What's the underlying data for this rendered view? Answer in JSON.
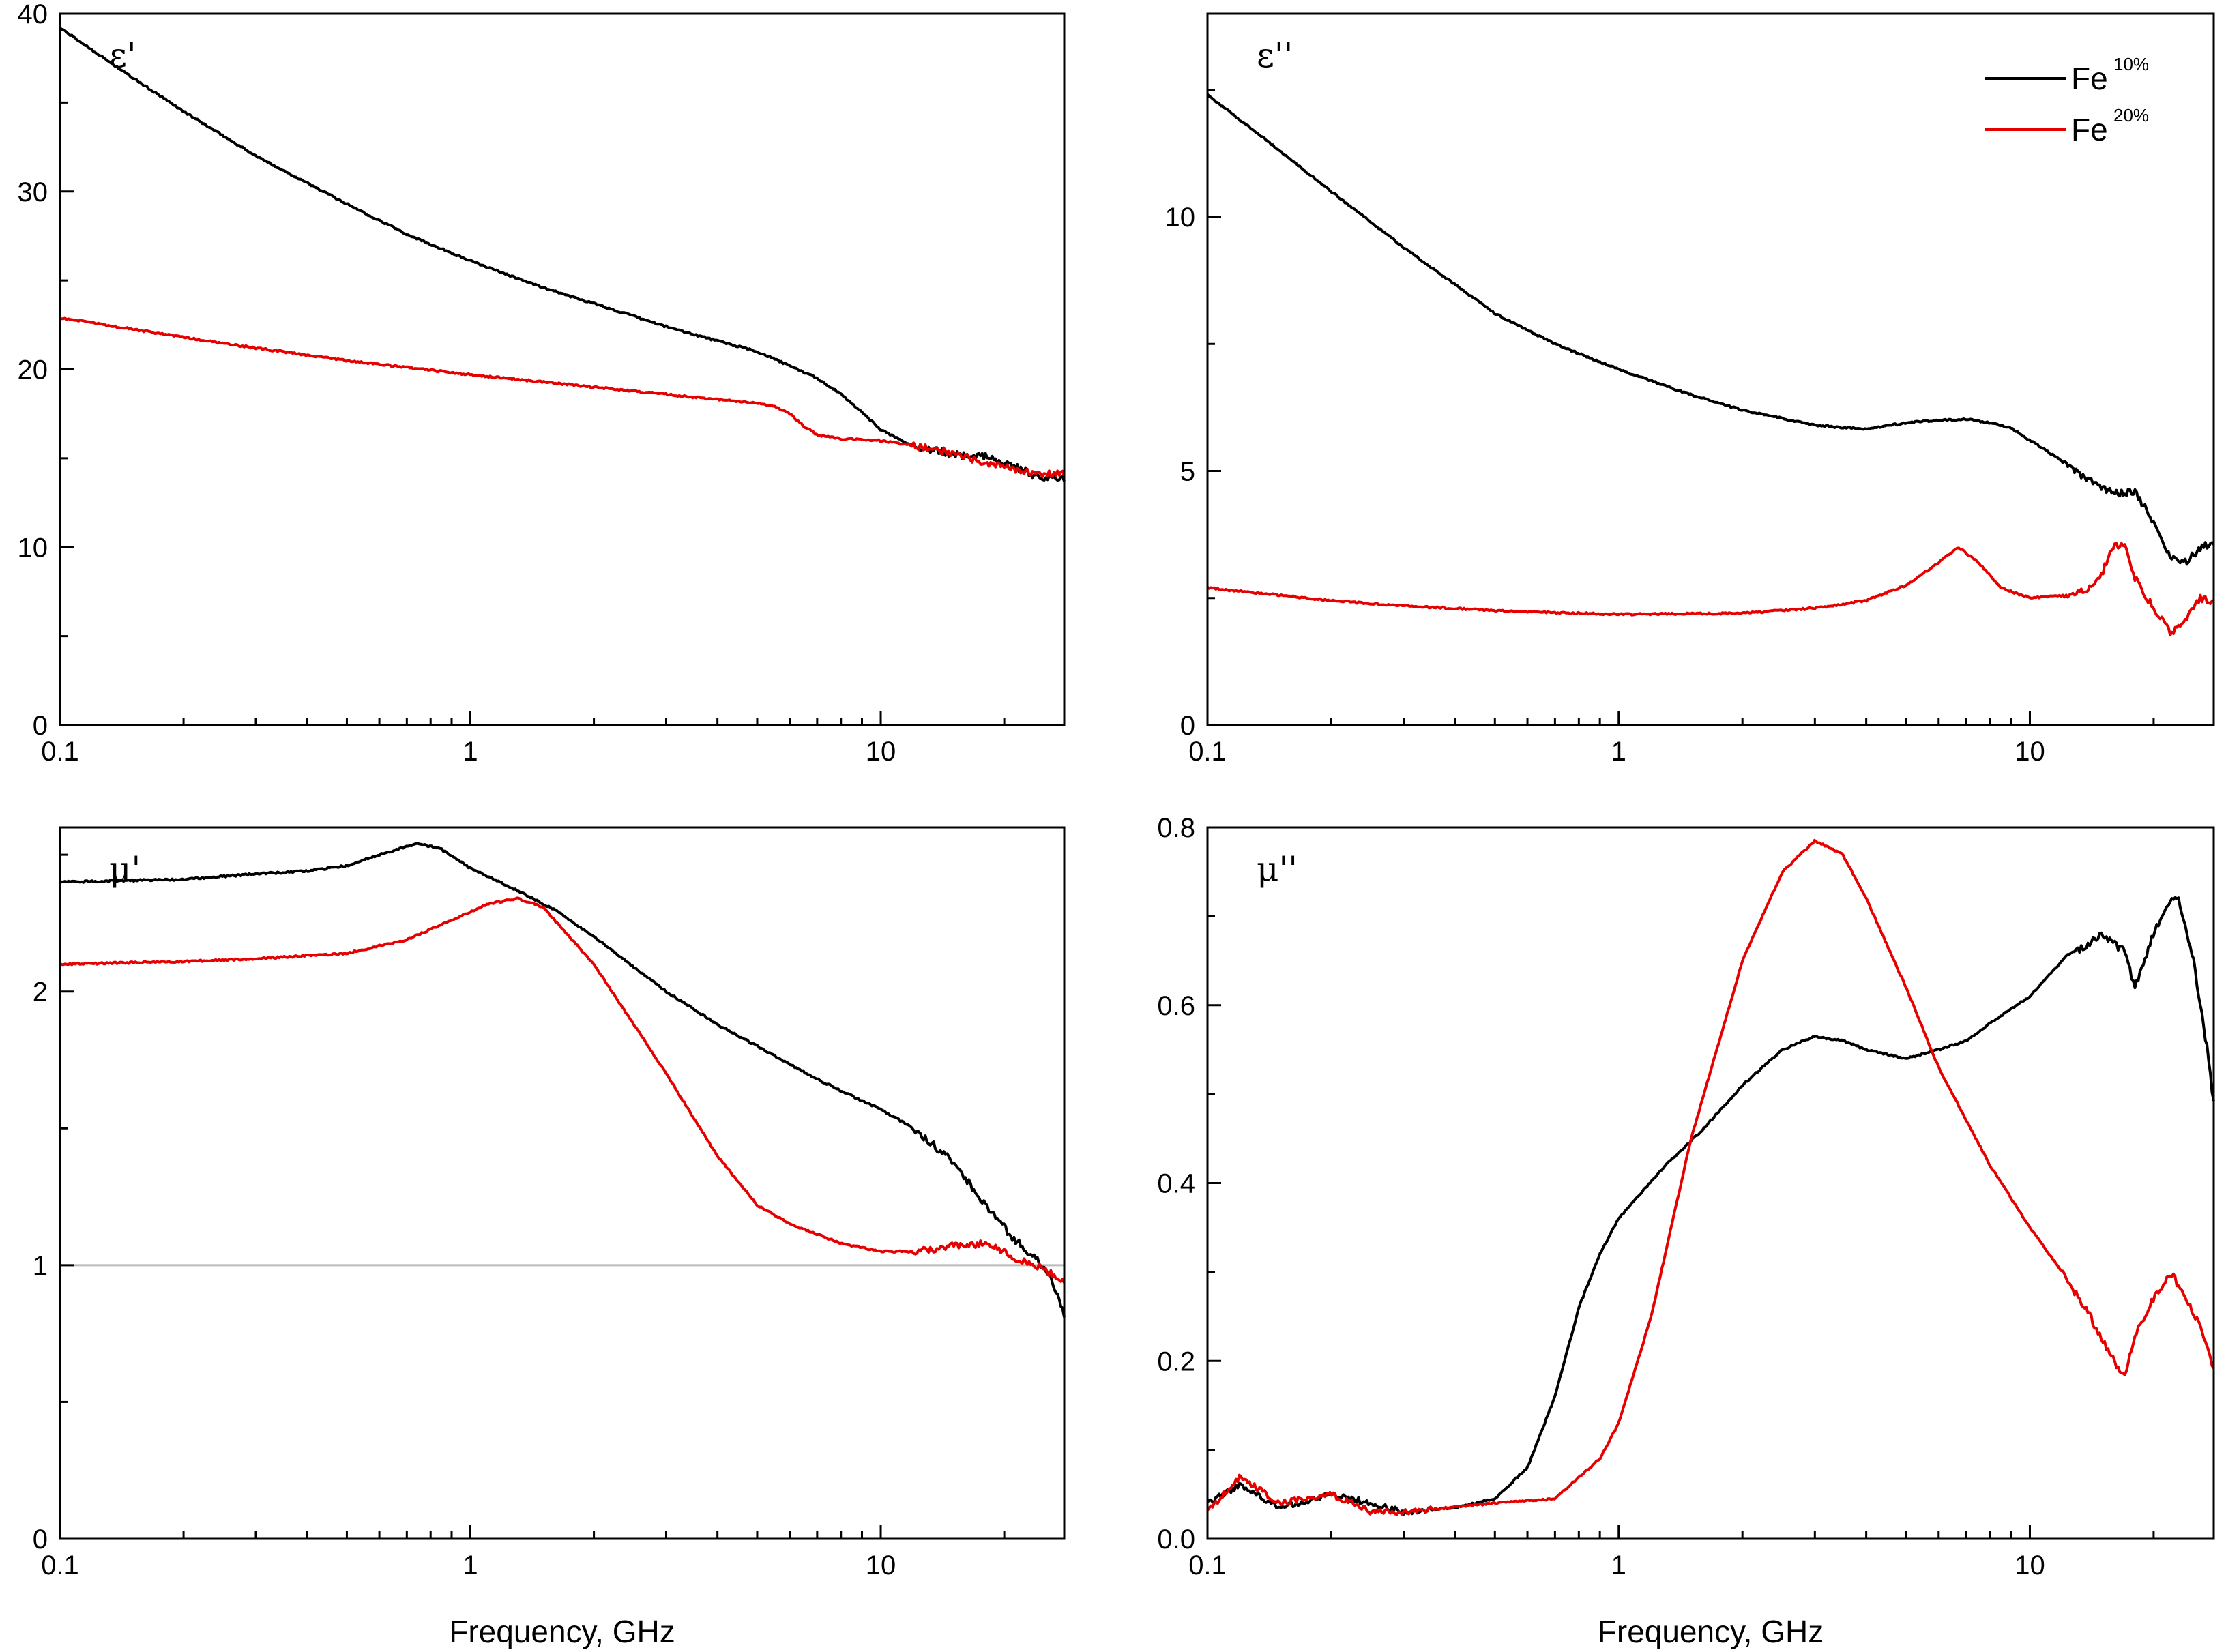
{
  "colors": {
    "fe10": "#000000",
    "fe20": "#e60000",
    "reference_line": "#bbbbbb",
    "frame": "#000000"
  },
  "legend": {
    "entries": [
      {
        "base": "Fe",
        "sup": "10%",
        "color": "#000000"
      },
      {
        "base": "Fe",
        "sup": "20%",
        "color": "#e60000"
      }
    ]
  },
  "chart_data": [
    {
      "id": "eps_real",
      "type": "line",
      "title": "ε'",
      "xscale": "log",
      "xlabel": "",
      "xlim": [
        0.1,
        28
      ],
      "ylim": [
        0,
        40
      ],
      "xticks": [
        {
          "v": 0.1,
          "t": "0.1"
        },
        {
          "v": 1,
          "t": "1"
        },
        {
          "v": 10,
          "t": "10"
        }
      ],
      "yticks": [
        {
          "v": 0,
          "t": "0"
        },
        {
          "v": 10,
          "t": "10"
        },
        {
          "v": 20,
          "t": "20"
        },
        {
          "v": 30,
          "t": "30"
        },
        {
          "v": 40,
          "t": "40"
        }
      ],
      "series": [
        {
          "name": "Fe 10%",
          "color": "#000000",
          "points": [
            [
              0.1,
              39.2
            ],
            [
              0.15,
              36.4
            ],
            [
              0.2,
              34.5
            ],
            [
              0.3,
              32.0
            ],
            [
              0.5,
              29.3
            ],
            [
              0.7,
              27.6
            ],
            [
              1,
              26.1
            ],
            [
              1.5,
              24.6
            ],
            [
              2,
              23.7
            ],
            [
              3,
              22.4
            ],
            [
              4,
              21.6
            ],
            [
              5,
              21.0
            ],
            [
              6,
              20.2
            ],
            [
              7,
              19.5
            ],
            [
              8,
              18.6
            ],
            [
              9,
              17.6
            ],
            [
              10,
              16.6
            ],
            [
              12,
              15.7
            ],
            [
              15,
              15.2
            ],
            [
              18,
              15.1
            ],
            [
              21,
              14.6
            ],
            [
              24,
              14.0
            ],
            [
              28,
              13.8
            ]
          ]
        },
        {
          "name": "Fe 20%",
          "color": "#e60000",
          "points": [
            [
              0.1,
              22.9
            ],
            [
              0.2,
              21.8
            ],
            [
              0.3,
              21.2
            ],
            [
              0.5,
              20.5
            ],
            [
              0.7,
              20.1
            ],
            [
              1,
              19.7
            ],
            [
              2,
              19.0
            ],
            [
              3,
              18.6
            ],
            [
              4,
              18.3
            ],
            [
              5,
              18.1
            ],
            [
              5.5,
              17.9
            ],
            [
              6,
              17.5
            ],
            [
              6.5,
              16.8
            ],
            [
              7,
              16.3
            ],
            [
              8,
              16.1
            ],
            [
              10,
              16.0
            ],
            [
              12,
              15.7
            ],
            [
              15,
              15.3
            ],
            [
              18,
              14.7
            ],
            [
              21,
              14.4
            ],
            [
              24,
              14.1
            ],
            [
              28,
              14.2
            ]
          ]
        }
      ]
    },
    {
      "id": "eps_imag",
      "type": "line",
      "title": "ε''",
      "xscale": "log",
      "xlabel": "",
      "xlim": [
        0.1,
        28
      ],
      "ylim": [
        0,
        14
      ],
      "xticks": [
        {
          "v": 0.1,
          "t": "0.1"
        },
        {
          "v": 1,
          "t": "1"
        },
        {
          "v": 10,
          "t": "10"
        }
      ],
      "yticks": [
        {
          "v": 0,
          "t": "0"
        },
        {
          "v": 5,
          "t": "5"
        },
        {
          "v": 10,
          "t": "10"
        }
      ],
      "series": [
        {
          "name": "Fe 10%",
          "color": "#000000",
          "points": [
            [
              0.1,
              12.4
            ],
            [
              0.15,
              11.3
            ],
            [
              0.2,
              10.5
            ],
            [
              0.3,
              9.4
            ],
            [
              0.5,
              8.1
            ],
            [
              0.7,
              7.5
            ],
            [
              1,
              7.0
            ],
            [
              1.5,
              6.5
            ],
            [
              2,
              6.2
            ],
            [
              3,
              5.9
            ],
            [
              4,
              5.82
            ],
            [
              5,
              5.95
            ],
            [
              6,
              6.0
            ],
            [
              7,
              6.02
            ],
            [
              8,
              5.95
            ],
            [
              9,
              5.85
            ],
            [
              10,
              5.6
            ],
            [
              12,
              5.2
            ],
            [
              14,
              4.8
            ],
            [
              16,
              4.55
            ],
            [
              18,
              4.6
            ],
            [
              20,
              4.0
            ],
            [
              22,
              3.3
            ],
            [
              24,
              3.2
            ],
            [
              26,
              3.5
            ],
            [
              28,
              3.6
            ]
          ]
        },
        {
          "name": "Fe 20%",
          "color": "#e60000",
          "points": [
            [
              0.1,
              2.7
            ],
            [
              0.2,
              2.45
            ],
            [
              0.3,
              2.35
            ],
            [
              0.5,
              2.25
            ],
            [
              1,
              2.18
            ],
            [
              2,
              2.2
            ],
            [
              3,
              2.3
            ],
            [
              4,
              2.45
            ],
            [
              5,
              2.75
            ],
            [
              6,
              3.2
            ],
            [
              6.7,
              3.5
            ],
            [
              7.5,
              3.2
            ],
            [
              8.5,
              2.7
            ],
            [
              10,
              2.5
            ],
            [
              12,
              2.55
            ],
            [
              14,
              2.7
            ],
            [
              15,
              3.0
            ],
            [
              16,
              3.5
            ],
            [
              17,
              3.6
            ],
            [
              18,
              2.9
            ],
            [
              20,
              2.3
            ],
            [
              22,
              1.8
            ],
            [
              24,
              2.1
            ],
            [
              26,
              2.5
            ],
            [
              28,
              2.4
            ]
          ]
        }
      ]
    },
    {
      "id": "mu_real",
      "type": "line",
      "title": "μ'",
      "xscale": "log",
      "xlabel": "Frequency, GHz",
      "xlim": [
        0.1,
        28
      ],
      "ylim": [
        0,
        2.6
      ],
      "reference_line": 1,
      "xticks": [
        {
          "v": 0.1,
          "t": "0.1"
        },
        {
          "v": 1,
          "t": "1"
        },
        {
          "v": 10,
          "t": "10"
        }
      ],
      "yticks": [
        {
          "v": 0,
          "t": "0"
        },
        {
          "v": 1,
          "t": "1"
        },
        {
          "v": 2,
          "t": "2"
        }
      ],
      "series": [
        {
          "name": "Fe 10%",
          "color": "#000000",
          "points": [
            [
              0.1,
              2.4
            ],
            [
              0.2,
              2.41
            ],
            [
              0.3,
              2.43
            ],
            [
              0.4,
              2.44
            ],
            [
              0.5,
              2.46
            ],
            [
              0.6,
              2.5
            ],
            [
              0.7,
              2.53
            ],
            [
              0.75,
              2.54
            ],
            [
              0.85,
              2.52
            ],
            [
              1,
              2.45
            ],
            [
              1.3,
              2.37
            ],
            [
              1.6,
              2.3
            ],
            [
              2,
              2.2
            ],
            [
              3,
              2.0
            ],
            [
              4,
              1.88
            ],
            [
              5,
              1.8
            ],
            [
              7,
              1.68
            ],
            [
              9,
              1.6
            ],
            [
              10,
              1.57
            ],
            [
              12,
              1.5
            ],
            [
              15,
              1.38
            ],
            [
              18,
              1.22
            ],
            [
              21,
              1.1
            ],
            [
              24,
              1.02
            ],
            [
              26,
              0.95
            ],
            [
              28,
              0.82
            ]
          ]
        },
        {
          "name": "Fe 20%",
          "color": "#e60000",
          "points": [
            [
              0.1,
              2.1
            ],
            [
              0.2,
              2.11
            ],
            [
              0.3,
              2.12
            ],
            [
              0.5,
              2.14
            ],
            [
              0.7,
              2.19
            ],
            [
              0.9,
              2.26
            ],
            [
              1.1,
              2.32
            ],
            [
              1.3,
              2.34
            ],
            [
              1.5,
              2.31
            ],
            [
              2,
              2.1
            ],
            [
              3,
              1.7
            ],
            [
              4,
              1.4
            ],
            [
              5,
              1.22
            ],
            [
              6,
              1.15
            ],
            [
              8,
              1.08
            ],
            [
              10,
              1.05
            ],
            [
              12,
              1.05
            ],
            [
              15,
              1.07
            ],
            [
              18,
              1.08
            ],
            [
              21,
              1.03
            ],
            [
              24,
              1.0
            ],
            [
              28,
              0.94
            ]
          ]
        }
      ]
    },
    {
      "id": "mu_imag",
      "type": "line",
      "title": "μ''",
      "xscale": "log",
      "xlabel": "Frequency, GHz",
      "xlim": [
        0.1,
        28
      ],
      "ylim": [
        0,
        0.8
      ],
      "xticks": [
        {
          "v": 0.1,
          "t": "0.1"
        },
        {
          "v": 1,
          "t": "1"
        },
        {
          "v": 10,
          "t": "10"
        }
      ],
      "yticks": [
        {
          "v": 0,
          "t": "0.0"
        },
        {
          "v": 0.2,
          "t": "0.2"
        },
        {
          "v": 0.4,
          "t": "0.4"
        },
        {
          "v": 0.6,
          "t": "0.6"
        },
        {
          "v": 0.8,
          "t": "0.8"
        }
      ],
      "series": [
        {
          "name": "Fe 10%",
          "color": "#000000",
          "points": [
            [
              0.1,
              0.04
            ],
            [
              0.12,
              0.06
            ],
            [
              0.15,
              0.035
            ],
            [
              0.2,
              0.05
            ],
            [
              0.25,
              0.04
            ],
            [
              0.3,
              0.03
            ],
            [
              0.4,
              0.035
            ],
            [
              0.5,
              0.045
            ],
            [
              0.6,
              0.08
            ],
            [
              0.7,
              0.16
            ],
            [
              0.8,
              0.26
            ],
            [
              0.9,
              0.32
            ],
            [
              1,
              0.36
            ],
            [
              1.3,
              0.42
            ],
            [
              1.6,
              0.46
            ],
            [
              2,
              0.51
            ],
            [
              2.5,
              0.55
            ],
            [
              3,
              0.565
            ],
            [
              3.5,
              0.56
            ],
            [
              4,
              0.55
            ],
            [
              5,
              0.54
            ],
            [
              6,
              0.55
            ],
            [
              7,
              0.56
            ],
            [
              8,
              0.58
            ],
            [
              10,
              0.61
            ],
            [
              12,
              0.65
            ],
            [
              15,
              0.68
            ],
            [
              17,
              0.66
            ],
            [
              18,
              0.62
            ],
            [
              20,
              0.68
            ],
            [
              22,
              0.72
            ],
            [
              23,
              0.72
            ],
            [
              25,
              0.65
            ],
            [
              27,
              0.55
            ],
            [
              28,
              0.49
            ]
          ]
        },
        {
          "name": "Fe 20%",
          "color": "#e60000",
          "points": [
            [
              0.1,
              0.03
            ],
            [
              0.12,
              0.07
            ],
            [
              0.15,
              0.04
            ],
            [
              0.2,
              0.05
            ],
            [
              0.25,
              0.03
            ],
            [
              0.3,
              0.03
            ],
            [
              0.5,
              0.04
            ],
            [
              0.7,
              0.045
            ],
            [
              0.9,
              0.09
            ],
            [
              1,
              0.13
            ],
            [
              1.2,
              0.25
            ],
            [
              1.5,
              0.45
            ],
            [
              2,
              0.65
            ],
            [
              2.5,
              0.75
            ],
            [
              3,
              0.785
            ],
            [
              3.5,
              0.77
            ],
            [
              4,
              0.72
            ],
            [
              5,
              0.62
            ],
            [
              6,
              0.53
            ],
            [
              8,
              0.42
            ],
            [
              10,
              0.35
            ],
            [
              12,
              0.3
            ],
            [
              14,
              0.25
            ],
            [
              16,
              0.2
            ],
            [
              17,
              0.18
            ],
            [
              18,
              0.23
            ],
            [
              20,
              0.27
            ],
            [
              22,
              0.3
            ],
            [
              24,
              0.27
            ],
            [
              26,
              0.24
            ],
            [
              28,
              0.19
            ]
          ]
        }
      ]
    }
  ]
}
